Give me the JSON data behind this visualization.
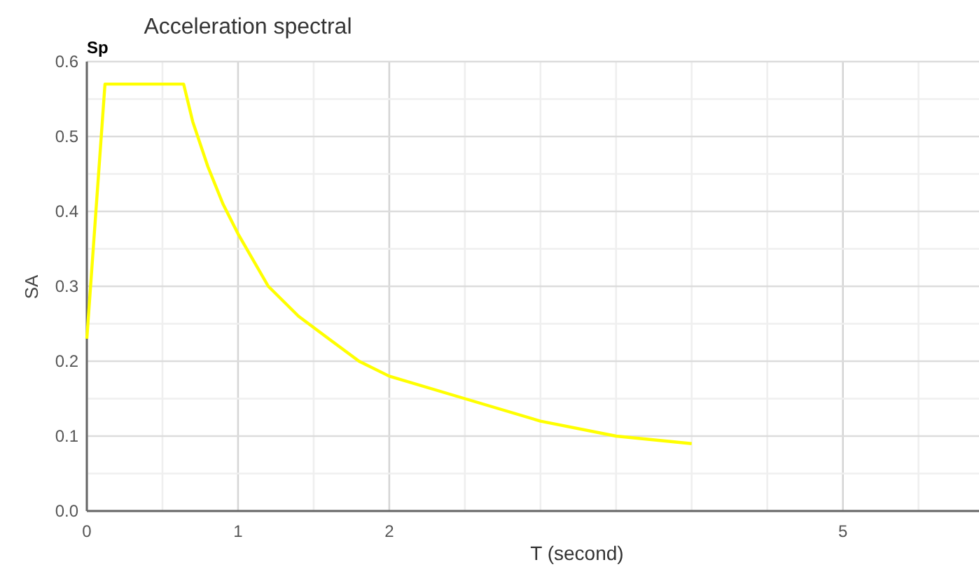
{
  "chart_data": {
    "type": "line",
    "title": "Acceleration spectral",
    "xlabel": "T (second)",
    "ylabel": "SA",
    "annotations": [
      "Sp"
    ],
    "x": [
      0,
      0.12,
      0.64,
      0.7,
      0.8,
      0.9,
      1,
      1.2,
      1.4,
      1.6,
      1.8,
      2,
      2.5,
      3,
      3.5,
      4
    ],
    "series": [
      {
        "color": "#ffff00",
        "values": [
          0.23,
          0.57,
          0.57,
          0.52,
          0.46,
          0.41,
          0.37,
          0.3,
          0.26,
          0.23,
          0.2,
          0.18,
          0.15,
          0.12,
          0.1,
          0.09
        ]
      }
    ],
    "xlim": [
      0,
      5.9
    ],
    "xticks": [
      0,
      {
        "value": 0.5,
        "label": null
      },
      1,
      {
        "value": 1.5,
        "label": null
      },
      2,
      {
        "value": 2.5,
        "label": null
      },
      {
        "value": 3,
        "label": null
      },
      {
        "value": 3.5,
        "label": null
      },
      {
        "value": 4,
        "label": null
      },
      {
        "value": 4.5,
        "label": null
      },
      5,
      {
        "value": 5.5,
        "label": null
      }
    ],
    "ylim": [
      0,
      0.6
    ],
    "yticks": [
      {
        "value": 0,
        "label": "0.0"
      },
      {
        "value": 0.05,
        "label": null
      },
      0.1,
      {
        "value": 0.15,
        "label": null
      },
      0.2,
      {
        "value": 0.25,
        "label": null
      },
      0.3,
      {
        "value": 0.35,
        "label": null
      },
      0.4,
      {
        "value": 0.45,
        "label": null
      },
      0.5,
      {
        "value": 0.55,
        "label": null
      },
      0.6
    ],
    "grid": true,
    "marker": "none",
    "line_style": "solid"
  }
}
